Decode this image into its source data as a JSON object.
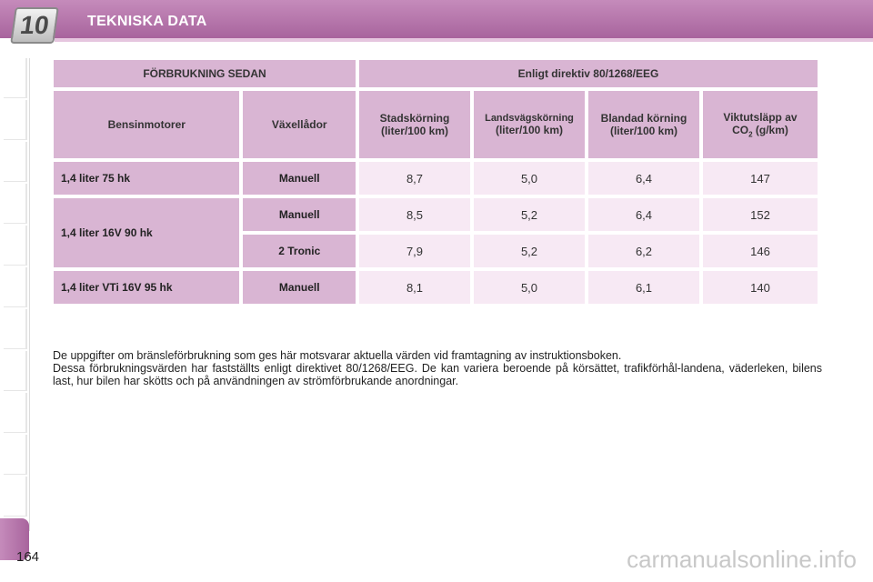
{
  "header": {
    "chapter_number": "10",
    "title": "TEKNISKA DATA",
    "accent_color": "#b473a9"
  },
  "table": {
    "top_left_header": "FÖRBRUKNING SEDAN",
    "top_right_header": "Enligt direktiv 80/1268/EEG",
    "columns": [
      "Bensinmotorer",
      "Växellådor",
      "Stadskörning\n(liter/100 km)",
      "Landsvägskörning",
      "(liter/100 km)",
      "Blandad körning\n(liter/100 km)",
      "Viktutsläpp av",
      "CO",
      "2",
      "(g/km)"
    ],
    "rows": [
      {
        "engine": "1,4 liter 75 hk",
        "gearbox": "Manuell",
        "city": "8,7",
        "highway": "5,0",
        "mixed": "6,4",
        "co2": "147"
      },
      {
        "engine": "1,4 liter 16V 90 hk",
        "gearbox": "Manuell",
        "city": "8,5",
        "highway": "5,2",
        "mixed": "6,4",
        "co2": "152"
      },
      {
        "engine": "",
        "gearbox": "2 Tronic",
        "city": "7,9",
        "highway": "5,2",
        "mixed": "6,2",
        "co2": "146"
      },
      {
        "engine": "1,4 liter VTi 16V 95 hk",
        "gearbox": "Manuell",
        "city": "8,1",
        "highway": "5,0",
        "mixed": "6,1",
        "co2": "140"
      }
    ]
  },
  "note": {
    "line1": "De uppgifter om bränsleförbrukning som ges här motsvarar aktuella värden vid framtagning av instruktionsboken.",
    "line2": "Dessa förbrukningsvärden har fastställts enligt direktivet 80/1268/EEG. De kan variera beroende på körsättet, trafikförhål-landena, väderleken, bilens last, hur bilen har skötts och på användningen av strömförbrukande anordningar."
  },
  "page_number": "164",
  "watermark": "carmanualsonline.info"
}
